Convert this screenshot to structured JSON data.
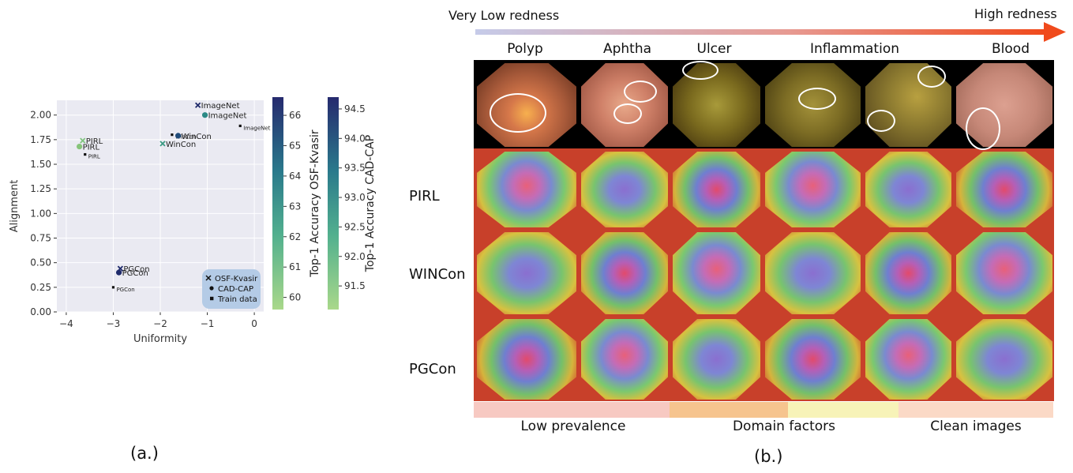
{
  "caption_a": "(a.)",
  "caption_b": "(b.)",
  "chart_data": {
    "type": "scatter",
    "xlabel": "Uniformity",
    "ylabel": "Alignment",
    "xlim": [
      -4.2,
      0.2
    ],
    "ylim": [
      0,
      2.15
    ],
    "xticks": [
      "−4",
      "−3",
      "−2",
      "−1",
      "0"
    ],
    "yticks": [
      "0.00",
      "0.25",
      "0.50",
      "0.75",
      "1.00",
      "1.25",
      "1.50",
      "1.75",
      "2.00"
    ],
    "grid": true,
    "legend": {
      "position": "bottom-right",
      "entries": [
        "OSF-Kvasir",
        "CAD-CAP",
        "Train data"
      ]
    },
    "points": [
      {
        "label": "PIRL",
        "x": -3.65,
        "y": 1.74,
        "marker": "x",
        "series": "OSF-Kvasir",
        "color": "#7fc47f"
      },
      {
        "label": "PIRL",
        "x": -3.72,
        "y": 1.68,
        "marker": "o",
        "series": "CAD-CAP",
        "color": "#86c47a"
      },
      {
        "label": "PIRL",
        "x": -3.6,
        "y": 1.6,
        "marker": "s",
        "series": "Train data",
        "color": "#111111"
      },
      {
        "label": "ImageNet",
        "x": -1.2,
        "y": 2.1,
        "marker": "x",
        "series": "OSF-Kvasir",
        "color": "#1f2a6b"
      },
      {
        "label": "ImageNet",
        "x": -1.05,
        "y": 2.0,
        "marker": "o",
        "series": "CAD-CAP",
        "color": "#2c8a86"
      },
      {
        "label": "ImageNet",
        "x": -0.3,
        "y": 1.89,
        "marker": "s",
        "series": "Train data",
        "color": "#111111"
      },
      {
        "label": "WinCon",
        "x": -1.75,
        "y": 1.8,
        "marker": "s",
        "series": "Train data",
        "color": "#111111"
      },
      {
        "label": "WinCon",
        "x": -1.62,
        "y": 1.79,
        "marker": "o",
        "series": "CAD-CAP",
        "color": "#1f4b7a"
      },
      {
        "label": "WinCon",
        "x": -1.95,
        "y": 1.71,
        "marker": "x",
        "series": "OSF-Kvasir",
        "color": "#3c9a84"
      },
      {
        "label": "PGCon",
        "x": -2.85,
        "y": 0.44,
        "marker": "x",
        "series": "OSF-Kvasir",
        "color": "#1f2a6b"
      },
      {
        "label": "PGCon",
        "x": -2.88,
        "y": 0.4,
        "marker": "o",
        "series": "CAD-CAP",
        "color": "#1f2a6b"
      },
      {
        "label": "PGCon",
        "x": -3.0,
        "y": 0.25,
        "marker": "s",
        "series": "Train data",
        "color": "#111111"
      }
    ],
    "colorbars": [
      {
        "label": "Top-1 Accuracy OSF-Kvasir",
        "min": 59.6,
        "max": 66.6,
        "ticks": [
          "60",
          "61",
          "62",
          "63",
          "64",
          "65",
          "66"
        ]
      },
      {
        "label": "Top-1 Accuracy CAD-CAP",
        "min": 91.1,
        "max": 94.7,
        "ticks": [
          "91.5",
          "92.0",
          "92.5",
          "93.0",
          "93.5",
          "94.0",
          "94.5"
        ]
      }
    ]
  },
  "panel_b": {
    "redness_low": "Very Low redness",
    "redness_high": "High redness",
    "columns": [
      "Polyp",
      "Aphtha",
      "Ulcer",
      "Inflammation",
      "Blood"
    ],
    "rows": [
      "PIRL",
      "WINCon",
      "PGCon"
    ],
    "groups": [
      {
        "label": "Low prevalence",
        "color": "#f7c9c2"
      },
      {
        "label": "Domain factors",
        "color": "#f6c48e"
      },
      {
        "label": "",
        "color": "#f7f3b8"
      },
      {
        "label": "Clean images",
        "color": "#fbd9c6"
      }
    ]
  }
}
